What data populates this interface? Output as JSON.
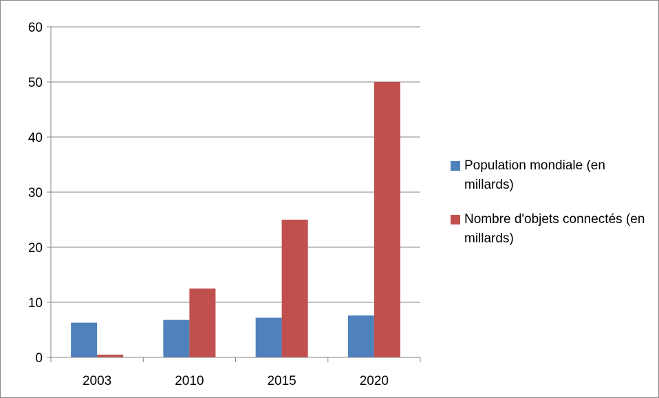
{
  "chart_data": {
    "type": "bar",
    "categories": [
      "2003",
      "2010",
      "2015",
      "2020"
    ],
    "series": [
      {
        "name": "Population mondiale (en millards)",
        "values": [
          6.3,
          6.8,
          7.2,
          7.6
        ],
        "color": "#4f81bd"
      },
      {
        "name": "Nombre d'objets connectés (en millards)",
        "values": [
          0.5,
          12.5,
          25,
          50
        ],
        "color": "#c0504d"
      }
    ],
    "title": "",
    "xlabel": "",
    "ylabel": "",
    "ylim": [
      0,
      60
    ],
    "yticks": [
      0,
      10,
      20,
      30,
      40,
      50,
      60
    ],
    "grid": true,
    "legend_position": "right"
  }
}
